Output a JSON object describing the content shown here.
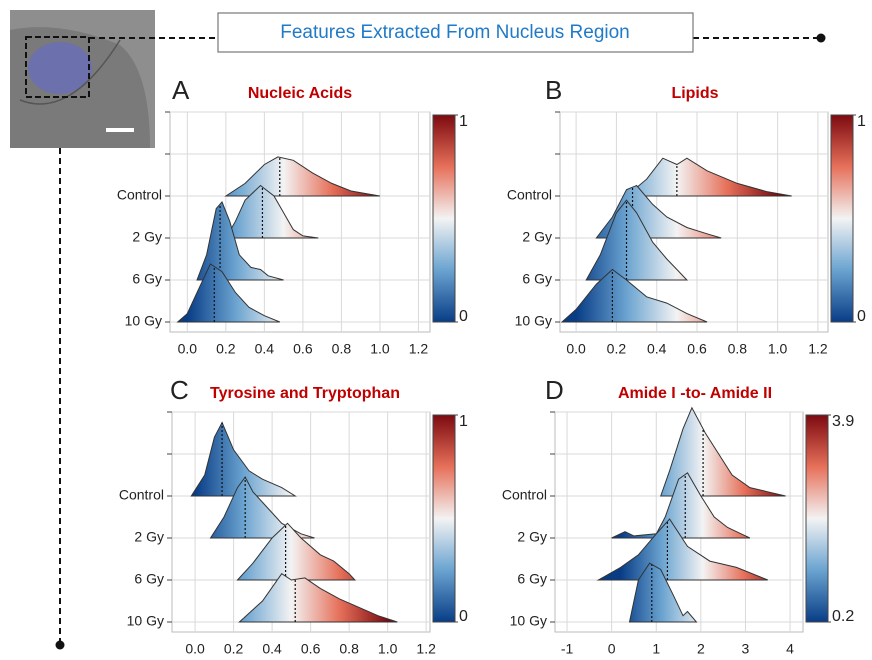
{
  "header": {
    "title": "Features Extracted From Nucleus Region"
  },
  "chart_data": [
    {
      "type": "ridgeline",
      "panel": "A",
      "title": "Nucleic Acids",
      "categories": [
        "Control",
        "2 Gy",
        "6 Gy",
        "10 Gy"
      ],
      "series": [
        {
          "x": [
            0.2,
            0.3,
            0.4,
            0.47,
            0.55,
            0.65,
            0.75,
            0.85,
            1.0
          ],
          "values": [
            0,
            0.3,
            0.75,
            0.93,
            0.85,
            0.55,
            0.3,
            0.12,
            0
          ],
          "median": 0.48
        },
        {
          "x": [
            0.2,
            0.25,
            0.3,
            0.38,
            0.45,
            0.5,
            0.55,
            0.6,
            0.68
          ],
          "values": [
            0,
            0.4,
            0.9,
            1.25,
            1.0,
            0.6,
            0.2,
            0.05,
            0
          ],
          "median": 0.39
        },
        {
          "x": [
            0.05,
            0.1,
            0.15,
            0.18,
            0.22,
            0.27,
            0.33,
            0.38,
            0.42,
            0.5
          ],
          "values": [
            0,
            0.6,
            1.7,
            1.86,
            1.4,
            0.6,
            0.3,
            0.25,
            0.1,
            0
          ],
          "median": 0.17
        },
        {
          "x": [
            -0.05,
            0.0,
            0.05,
            0.12,
            0.18,
            0.25,
            0.32,
            0.4,
            0.48
          ],
          "values": [
            0,
            0.2,
            0.7,
            1.38,
            1.2,
            0.7,
            0.35,
            0.15,
            0
          ],
          "median": 0.14
        }
      ],
      "xlim": [
        -0.09,
        1.26
      ],
      "xticks": [
        {
          "value": 0,
          "label": "0.0"
        },
        {
          "value": 0.2,
          "label": "0.2"
        },
        {
          "value": 0.4,
          "label": "0.4"
        },
        {
          "value": 0.6,
          "label": "0.6"
        },
        {
          "value": 0.8,
          "label": "0.8"
        },
        {
          "value": 1,
          "label": "1.0"
        },
        {
          "value": 1.2,
          "label": "1.2"
        }
      ],
      "clim": [
        0,
        1
      ],
      "cticks": [
        0,
        1
      ],
      "colormap": [
        "#083d86",
        "#6aa3d0",
        "#f3f3f3",
        "#e6705a",
        "#7d0a10"
      ],
      "grid": true
    },
    {
      "type": "ridgeline",
      "panel": "B",
      "title": "Lipids",
      "categories": [
        "Control",
        "2 Gy",
        "6 Gy",
        "10 Gy"
      ],
      "series": [
        {
          "x": [
            0.25,
            0.35,
            0.43,
            0.5,
            0.55,
            0.65,
            0.8,
            0.95,
            1.07
          ],
          "values": [
            0,
            0.4,
            0.9,
            0.75,
            0.9,
            0.6,
            0.3,
            0.1,
            0
          ],
          "median": 0.5
        },
        {
          "x": [
            0.1,
            0.18,
            0.25,
            0.3,
            0.38,
            0.45,
            0.55,
            0.65,
            0.72
          ],
          "values": [
            0,
            0.5,
            1.15,
            1.25,
            0.8,
            0.5,
            0.25,
            0.1,
            0
          ],
          "median": 0.28
        },
        {
          "x": [
            0.05,
            0.12,
            0.2,
            0.25,
            0.3,
            0.38,
            0.45,
            0.5,
            0.55
          ],
          "values": [
            0,
            0.6,
            1.6,
            1.9,
            1.6,
            0.9,
            0.5,
            0.25,
            0
          ],
          "median": 0.25
        },
        {
          "x": [
            -0.07,
            0.0,
            0.1,
            0.18,
            0.25,
            0.35,
            0.45,
            0.55,
            0.65
          ],
          "values": [
            0,
            0.3,
            0.9,
            1.25,
            1.0,
            0.6,
            0.45,
            0.2,
            0
          ],
          "median": 0.18
        }
      ],
      "xlim": [
        -0.08,
        1.25
      ],
      "xticks": [
        {
          "value": 0,
          "label": "0.0"
        },
        {
          "value": 0.2,
          "label": "0.2"
        },
        {
          "value": 0.4,
          "label": "0.4"
        },
        {
          "value": 0.6,
          "label": "0.6"
        },
        {
          "value": 0.8,
          "label": "0.8"
        },
        {
          "value": 1,
          "label": "1.0"
        },
        {
          "value": 1.2,
          "label": "1.2"
        }
      ],
      "clim": [
        0,
        1
      ],
      "cticks": [
        0,
        1
      ],
      "colormap": [
        "#083d86",
        "#6aa3d0",
        "#f3f3f3",
        "#e6705a",
        "#7d0a10"
      ],
      "grid": true
    },
    {
      "type": "ridgeline",
      "panel": "C",
      "title": "Tyrosine and Tryptophan",
      "categories": [
        "Control",
        "2 Gy",
        "6 Gy",
        "10 Gy"
      ],
      "series": [
        {
          "x": [
            -0.02,
            0.05,
            0.1,
            0.14,
            0.2,
            0.28,
            0.35,
            0.45,
            0.52
          ],
          "values": [
            0,
            0.5,
            1.4,
            1.75,
            1.1,
            0.6,
            0.4,
            0.2,
            0
          ],
          "median": 0.14
        },
        {
          "x": [
            0.08,
            0.15,
            0.22,
            0.26,
            0.3,
            0.38,
            0.45,
            0.55,
            0.62
          ],
          "values": [
            0,
            0.5,
            1.2,
            1.45,
            1.1,
            0.7,
            0.35,
            0.1,
            0
          ],
          "median": 0.26
        },
        {
          "x": [
            0.22,
            0.3,
            0.4,
            0.48,
            0.55,
            0.65,
            0.72,
            0.8,
            0.83
          ],
          "values": [
            0,
            0.4,
            1.0,
            1.35,
            1.0,
            0.6,
            0.45,
            0.15,
            0
          ],
          "median": 0.47
        },
        {
          "x": [
            0.23,
            0.35,
            0.45,
            0.5,
            0.57,
            0.65,
            0.75,
            0.85,
            0.95,
            1.05
          ],
          "values": [
            0,
            0.5,
            1.15,
            1.0,
            1.05,
            0.8,
            0.55,
            0.35,
            0.15,
            0
          ],
          "median": 0.52
        }
      ],
      "xlim": [
        -0.12,
        1.22
      ],
      "xticks": [
        {
          "value": 0,
          "label": "0.0"
        },
        {
          "value": 0.2,
          "label": "0.2"
        },
        {
          "value": 0.4,
          "label": "0.4"
        },
        {
          "value": 0.6,
          "label": "0.6"
        },
        {
          "value": 0.8,
          "label": "0.8"
        },
        {
          "value": 1,
          "label": "1.0"
        },
        {
          "value": 1.2,
          "label": "1.2"
        }
      ],
      "clim": [
        0,
        1
      ],
      "cticks": [
        0,
        1
      ],
      "colormap": [
        "#083d86",
        "#6aa3d0",
        "#f3f3f3",
        "#e6705a",
        "#7d0a10"
      ],
      "grid": true
    },
    {
      "type": "ridgeline",
      "panel": "D",
      "title": "Amide I -to- Amide II",
      "categories": [
        "Control",
        "2 Gy",
        "6 Gy",
        "10 Gy"
      ],
      "series": [
        {
          "x": [
            1.1,
            1.3,
            1.6,
            1.8,
            2.1,
            2.4,
            2.7,
            3.1,
            3.5,
            3.9
          ],
          "values": [
            0,
            0.6,
            1.6,
            2.1,
            1.5,
            1.0,
            0.5,
            0.2,
            0.1,
            0
          ],
          "median": 2.05
        },
        {
          "x": [
            0.0,
            0.3,
            0.5,
            1.0,
            1.2,
            1.5,
            1.7,
            2.0,
            2.3,
            2.6,
            2.9,
            3.1
          ],
          "values": [
            0,
            0.15,
            0.05,
            0.1,
            0.5,
            1.4,
            1.55,
            1.0,
            0.5,
            0.25,
            0.1,
            0
          ],
          "median": 1.65
        },
        {
          "x": [
            -0.3,
            0.2,
            0.6,
            1.0,
            1.3,
            1.7,
            2.2,
            2.8,
            3.5
          ],
          "values": [
            0,
            0.3,
            0.6,
            1.1,
            1.45,
            0.8,
            0.45,
            0.3,
            0
          ],
          "median": 1.25
        },
        {
          "x": [
            0.4,
            0.6,
            0.85,
            1.1,
            1.4,
            1.6,
            1.7,
            1.9
          ],
          "values": [
            0,
            1.0,
            1.4,
            1.25,
            0.6,
            0.15,
            0.25,
            0
          ],
          "median": 0.9
        }
      ],
      "xlim": [
        -1.27,
        4.29
      ],
      "xticks": [
        -1,
        0,
        1,
        2,
        3,
        4
      ],
      "clim": [
        0.2,
        3.9
      ],
      "cticks": [
        0.2,
        3.9
      ],
      "colormap": [
        "#083d86",
        "#6aa3d0",
        "#f3f3f3",
        "#e6705a",
        "#7d0a10"
      ],
      "grid": true
    }
  ]
}
